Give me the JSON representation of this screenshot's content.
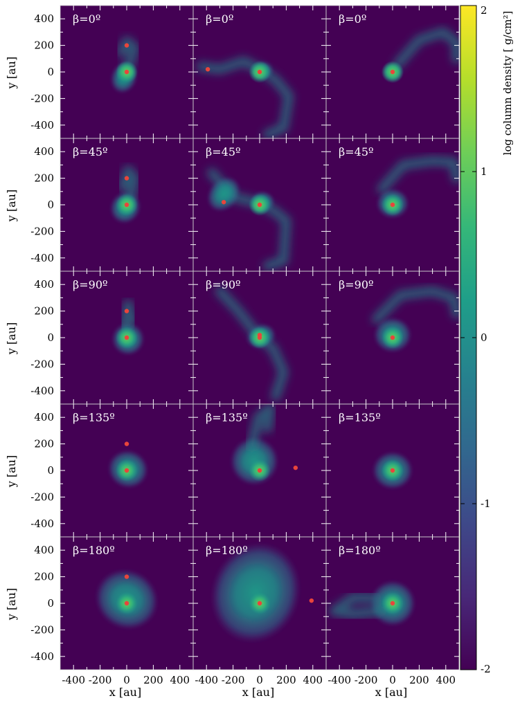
{
  "chart_data": {
    "type": "heatmap",
    "layout": {
      "rows": 5,
      "cols": 3
    },
    "xlabel": "x [au]",
    "ylabel": "y [au]",
    "xlim": [
      -500,
      500
    ],
    "ylim": [
      -500,
      500
    ],
    "x_ticks": [
      -400,
      -200,
      0,
      200,
      400
    ],
    "y_ticks": [
      -400,
      -200,
      0,
      200,
      400
    ],
    "x_tick_labels": [
      "-400",
      "-200",
      "0",
      "200",
      "400"
    ],
    "y_tick_labels": [
      "-400",
      "-200",
      "0",
      "200",
      "400"
    ],
    "grid": false,
    "background_color": "#440154",
    "marker_color": "#e8453c",
    "colorbar": {
      "label": "log column density",
      "units": "[ g/cm²]",
      "range": [
        -2,
        2
      ],
      "ticks": [
        2,
        1,
        0,
        -1,
        -2
      ],
      "tick_labels": [
        "2",
        "1",
        "0",
        "-1",
        "-2"
      ],
      "colormap": "viridis",
      "stops": [
        "#440154",
        "#482878",
        "#3e4989",
        "#31688e",
        "#26828e",
        "#1f9e89",
        "#35b779",
        "#6ece58",
        "#b5de2b",
        "#fde725"
      ]
    },
    "panels": [
      {
        "label": "β=0º",
        "row": 0,
        "col": 0,
        "star": [
          0,
          0
        ],
        "companion": [
          0,
          200
        ]
      },
      {
        "label": "β=0º",
        "row": 0,
        "col": 1,
        "star": [
          0,
          0
        ],
        "companion": [
          -390,
          20
        ]
      },
      {
        "label": "β=0º",
        "row": 0,
        "col": 2,
        "star": [
          0,
          0
        ],
        "companion": null
      },
      {
        "label": "β=45º",
        "row": 1,
        "col": 0,
        "star": [
          0,
          0
        ],
        "companion": [
          0,
          200
        ]
      },
      {
        "label": "β=45º",
        "row": 1,
        "col": 1,
        "star": [
          0,
          0
        ],
        "companion": [
          -270,
          20
        ]
      },
      {
        "label": "β=45º",
        "row": 1,
        "col": 2,
        "star": [
          0,
          0
        ],
        "companion": null
      },
      {
        "label": "β=90º",
        "row": 2,
        "col": 0,
        "star": [
          0,
          0
        ],
        "companion": [
          0,
          200
        ]
      },
      {
        "label": "β=90º",
        "row": 2,
        "col": 1,
        "star": [
          0,
          0
        ],
        "companion": [
          0,
          20
        ]
      },
      {
        "label": "β=90º",
        "row": 2,
        "col": 2,
        "star": [
          0,
          0
        ],
        "companion": null
      },
      {
        "label": "β=135º",
        "row": 3,
        "col": 0,
        "star": [
          0,
          0
        ],
        "companion": [
          0,
          200
        ]
      },
      {
        "label": "β=135º",
        "row": 3,
        "col": 1,
        "star": [
          0,
          0
        ],
        "companion": [
          270,
          20
        ]
      },
      {
        "label": "β=135º",
        "row": 3,
        "col": 2,
        "star": [
          0,
          0
        ],
        "companion": null
      },
      {
        "label": "β=180º",
        "row": 4,
        "col": 0,
        "star": [
          0,
          0
        ],
        "companion": [
          0,
          200
        ]
      },
      {
        "label": "β=180º",
        "row": 4,
        "col": 1,
        "star": [
          0,
          0
        ],
        "companion": [
          390,
          20
        ]
      },
      {
        "label": "β=180º",
        "row": 4,
        "col": 2,
        "star": [
          0,
          0
        ],
        "companion": null
      }
    ]
  }
}
